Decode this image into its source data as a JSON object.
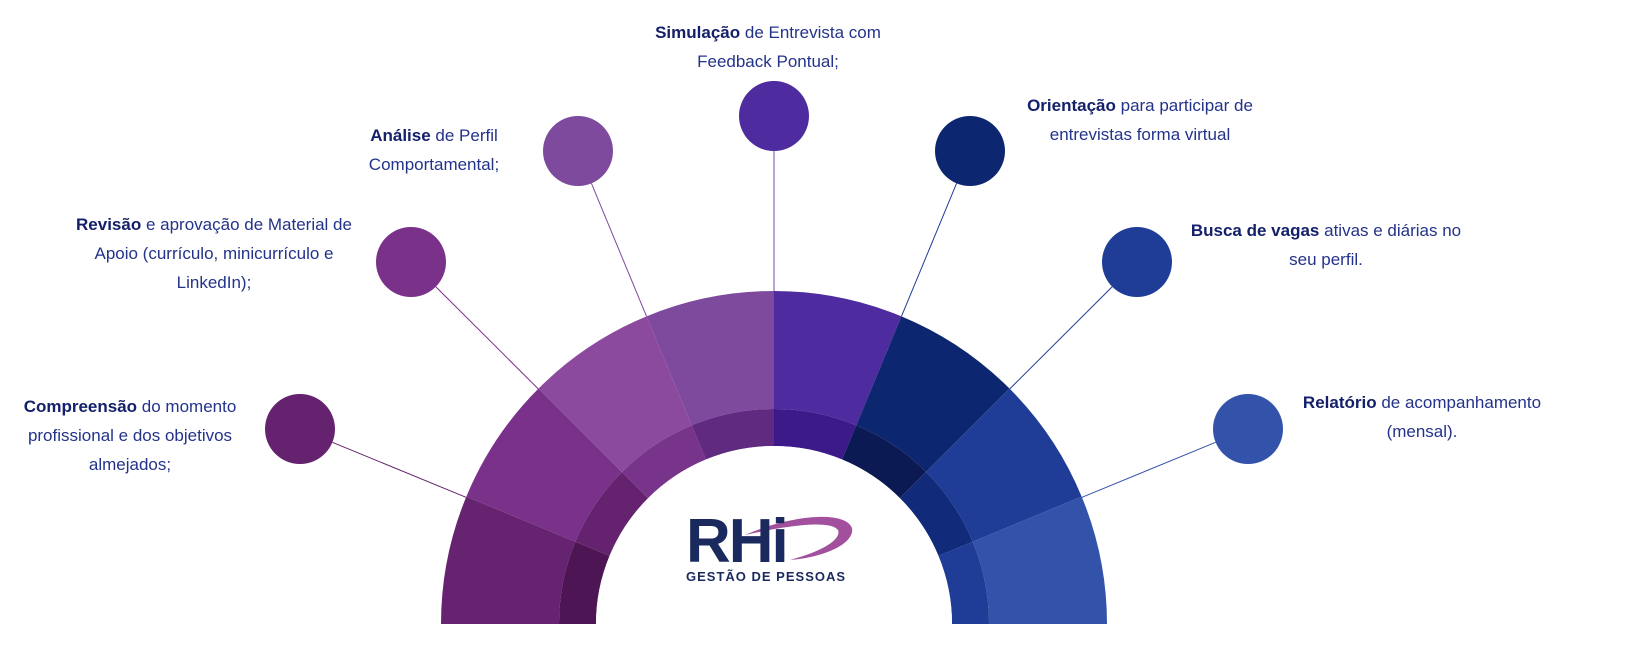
{
  "items": [
    {
      "title": "Compreensão",
      "text": "do momento profissional e dos objetivos almejados;"
    },
    {
      "title": "Revisão",
      "text": "e aprovação de Material de Apoio (currículo, minicurrículo e LinkedIn);"
    },
    {
      "title": "Análise",
      "text": "de Perfil Comportamental;"
    },
    {
      "title": "Simulação",
      "text": "de Entrevista com Feedback Pontual;"
    },
    {
      "title": "Orientação",
      "text": "para participar de entrevistas forma virtual"
    },
    {
      "title": "Busca de vagas",
      "text": "ativas e diárias no seu perfil."
    },
    {
      "title": "Relatório",
      "text": "de acompanhamento (mensal)."
    }
  ],
  "logo": {
    "name": "RHi",
    "tagline": "GESTÃO DE PESSOAS"
  }
}
